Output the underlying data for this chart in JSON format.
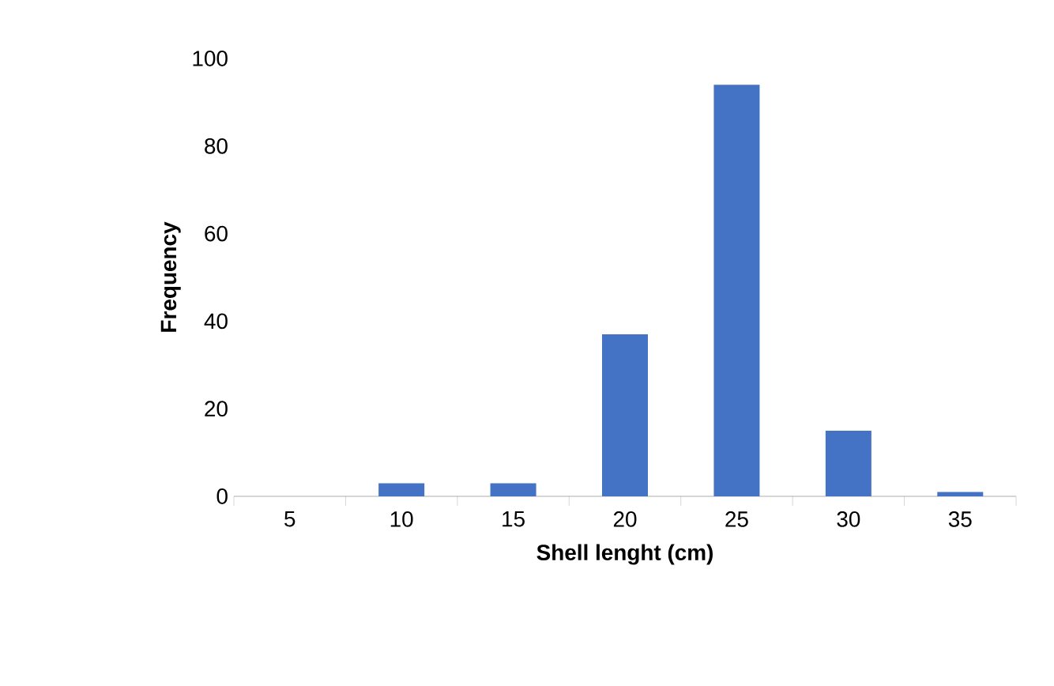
{
  "chart_data": {
    "type": "bar",
    "xlabel": "Shell lenght (cm)",
    "ylabel": "Frequency",
    "categories": [
      "5",
      "10",
      "15",
      "20",
      "25",
      "30",
      "35"
    ],
    "values": [
      0,
      3,
      3,
      37,
      94,
      15,
      1
    ],
    "color": "#4472c4",
    "ylim": [
      0,
      100
    ],
    "yticks": [
      0,
      20,
      40,
      60,
      80,
      100
    ]
  }
}
